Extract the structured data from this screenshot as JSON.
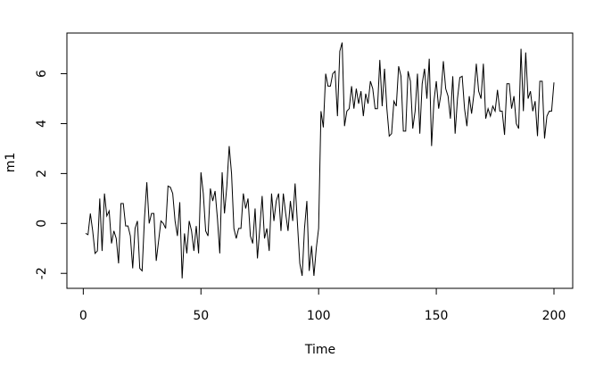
{
  "chart_data": {
    "type": "line",
    "xlabel": "Time",
    "ylabel": "m1",
    "x": [
      1,
      2,
      3,
      4,
      5,
      6,
      7,
      8,
      9,
      10,
      11,
      12,
      13,
      14,
      15,
      16,
      17,
      18,
      19,
      20,
      21,
      22,
      23,
      24,
      25,
      26,
      27,
      28,
      29,
      30,
      31,
      32,
      33,
      34,
      35,
      36,
      37,
      38,
      39,
      40,
      41,
      42,
      43,
      44,
      45,
      46,
      47,
      48,
      49,
      50,
      51,
      52,
      53,
      54,
      55,
      56,
      57,
      58,
      59,
      60,
      61,
      62,
      63,
      64,
      65,
      66,
      67,
      68,
      69,
      70,
      71,
      72,
      73,
      74,
      75,
      76,
      77,
      78,
      79,
      80,
      81,
      82,
      83,
      84,
      85,
      86,
      87,
      88,
      89,
      90,
      91,
      92,
      93,
      94,
      95,
      96,
      97,
      98,
      99,
      100,
      101,
      102,
      103,
      104,
      105,
      106,
      107,
      108,
      109,
      110,
      111,
      112,
      113,
      114,
      115,
      116,
      117,
      118,
      119,
      120,
      121,
      122,
      123,
      124,
      125,
      126,
      127,
      128,
      129,
      130,
      131,
      132,
      133,
      134,
      135,
      136,
      137,
      138,
      139,
      140,
      141,
      142,
      143,
      144,
      145,
      146,
      147,
      148,
      149,
      150,
      151,
      152,
      153,
      154,
      155,
      156,
      157,
      158,
      159,
      160,
      161,
      162,
      163,
      164,
      165,
      166,
      167,
      168,
      169,
      170,
      171,
      172,
      173,
      174,
      175,
      176,
      177,
      178,
      179,
      180,
      181,
      182,
      183,
      184,
      185,
      186,
      187,
      188,
      189,
      190,
      191,
      192,
      193,
      194,
      195,
      196,
      197,
      198,
      199,
      200
    ],
    "series": [
      {
        "color": "#000000",
        "values": [
          -0.4,
          -0.45,
          0.4,
          -0.3,
          -1.2,
          -1.1,
          1.0,
          -1.1,
          1.2,
          0.3,
          0.5,
          -0.8,
          -0.3,
          -0.6,
          -1.6,
          0.8,
          0.8,
          -0.1,
          -0.1,
          -0.5,
          -1.8,
          -0.2,
          0.1,
          -1.8,
          -1.9,
          0.2,
          1.65,
          0.0,
          0.4,
          0.4,
          -1.5,
          -0.7,
          0.1,
          0.0,
          -0.2,
          1.5,
          1.45,
          1.2,
          0.1,
          -0.5,
          0.85,
          -2.2,
          -0.4,
          -1.2,
          0.1,
          -0.3,
          -1.1,
          -0.1,
          -1.2,
          2.05,
          1.2,
          -0.3,
          -0.5,
          1.4,
          0.9,
          1.3,
          0.2,
          -1.2,
          2.05,
          0.4,
          1.5,
          3.1,
          2.0,
          -0.2,
          -0.6,
          -0.2,
          -0.2,
          1.2,
          0.6,
          1.0,
          -0.5,
          -0.8,
          0.6,
          -1.4,
          -0.2,
          1.1,
          -0.6,
          -0.2,
          -1.1,
          1.2,
          0.1,
          0.9,
          1.2,
          -0.3,
          1.2,
          0.4,
          -0.3,
          0.9,
          0.1,
          1.6,
          0.0,
          -1.6,
          -2.1,
          -0.2,
          0.9,
          -1.9,
          -0.9,
          -2.1,
          -1.0,
          -0.2,
          4.5,
          3.85,
          6.0,
          5.5,
          5.5,
          6.0,
          6.1,
          4.3,
          6.9,
          7.25,
          3.9,
          4.5,
          4.6,
          5.5,
          4.6,
          5.4,
          4.8,
          5.3,
          4.3,
          5.2,
          4.8,
          5.7,
          5.4,
          4.6,
          4.6,
          6.55,
          4.7,
          6.2,
          4.6,
          3.5,
          3.6,
          4.9,
          4.7,
          6.3,
          5.9,
          3.7,
          3.7,
          6.1,
          5.7,
          3.8,
          4.5,
          6.0,
          3.6,
          5.6,
          6.2,
          5.0,
          6.6,
          3.1,
          4.9,
          5.7,
          4.6,
          5.2,
          6.5,
          5.4,
          5.1,
          4.2,
          5.9,
          3.6,
          5.0,
          5.85,
          5.9,
          4.6,
          3.9,
          5.1,
          4.4,
          5.2,
          6.4,
          5.3,
          5.0,
          6.4,
          4.2,
          4.6,
          4.3,
          4.7,
          4.5,
          5.35,
          4.5,
          4.5,
          3.55,
          5.6,
          5.6,
          4.6,
          5.1,
          4.0,
          3.8,
          7.0,
          4.5,
          6.85,
          5.0,
          5.3,
          4.5,
          4.9,
          3.5,
          5.7,
          5.7,
          3.4,
          4.3,
          4.5,
          4.5,
          5.65
        ]
      }
    ],
    "xlim": [
      -6.96,
      207.96
    ],
    "xticks": [
      0,
      50,
      100,
      150,
      200
    ],
    "ylim": [
      -2.6,
      7.63
    ],
    "yticks": [
      -2,
      0,
      2,
      4,
      6
    ]
  }
}
